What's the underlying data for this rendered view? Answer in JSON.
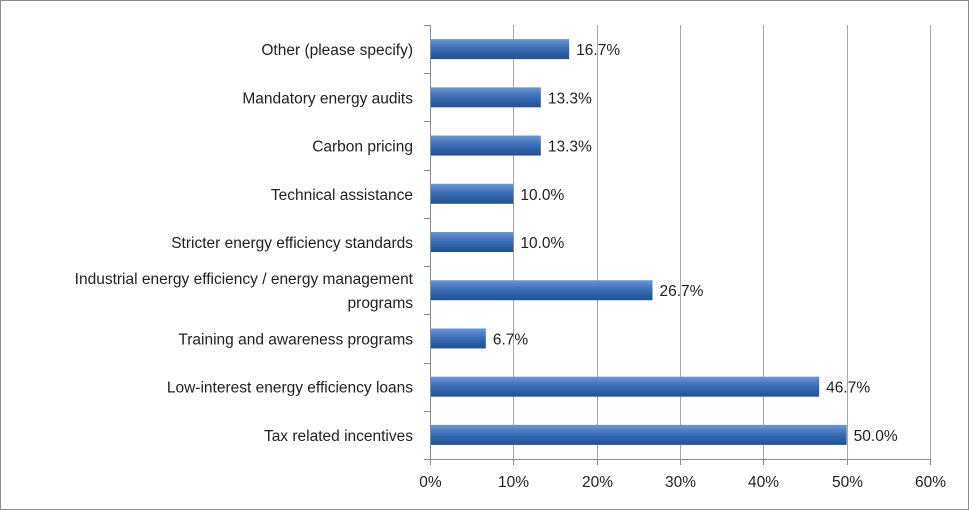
{
  "chart_data": {
    "type": "bar",
    "orientation": "horizontal",
    "categories": [
      [
        "Other (please specify)"
      ],
      [
        "Mandatory energy audits"
      ],
      [
        "Carbon pricing"
      ],
      [
        "Technical assistance"
      ],
      [
        "Stricter energy efficiency standards"
      ],
      [
        "Industrial energy efficiency / energy management",
        "programs"
      ],
      [
        "Training and awareness programs"
      ],
      [
        "Low-interest energy efficiency loans"
      ],
      [
        "Tax related incentives"
      ]
    ],
    "values": [
      16.7,
      13.3,
      13.3,
      10.0,
      10.0,
      26.7,
      6.7,
      46.7,
      50.0
    ],
    "value_labels": [
      "16.7%",
      "13.3%",
      "13.3%",
      "10.0%",
      "10.0%",
      "26.7%",
      "6.7%",
      "46.7%",
      "50.0%"
    ],
    "xlim": [
      0,
      60
    ],
    "xticks": [
      0,
      10,
      20,
      30,
      40,
      50,
      60
    ],
    "xtick_labels": [
      "0%",
      "10%",
      "20%",
      "30%",
      "40%",
      "50%",
      "60%"
    ],
    "grid": "vertical",
    "legend": "none",
    "title": "",
    "xlabel": "",
    "ylabel": "",
    "colors": {
      "bar": "#3a6fb8",
      "bar_light": "#6b98d6",
      "bar_dark": "#22508f",
      "grid": "#a6a6a6",
      "axis": "#8c8c8c"
    }
  }
}
